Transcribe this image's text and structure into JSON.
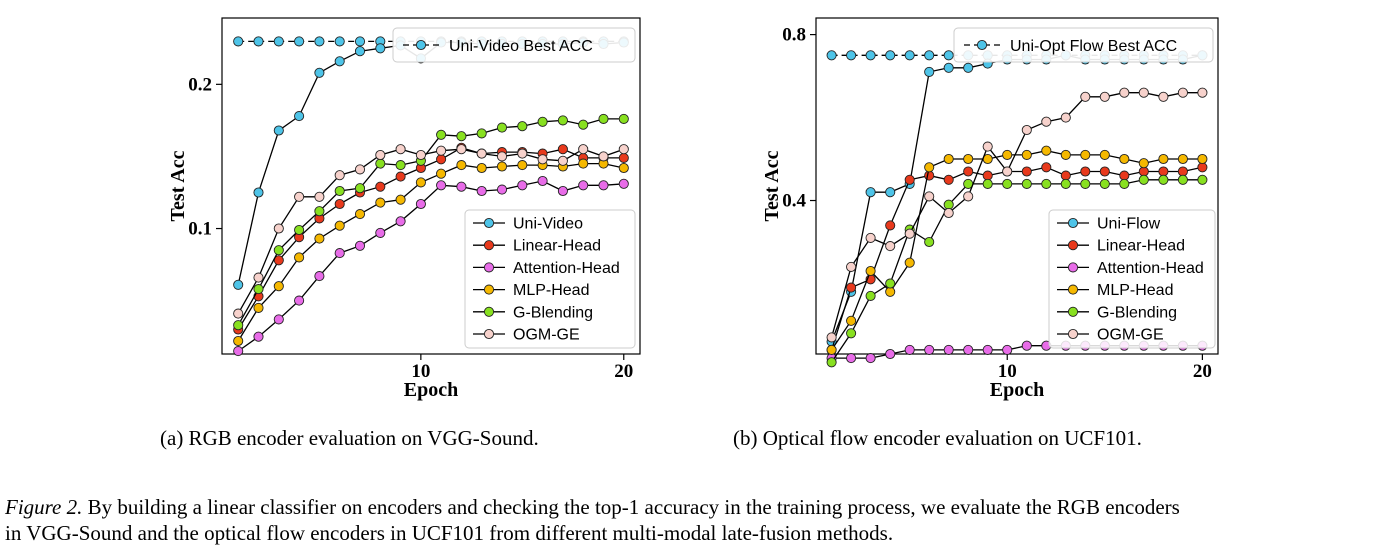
{
  "chart_data": [
    {
      "type": "line",
      "caption": "(a) RGB encoder evaluation on VGG-Sound.",
      "xlabel": "Epoch",
      "ylabel": "Test Acc",
      "xlim": [
        0.2,
        20.8
      ],
      "ylim": [
        0.013,
        0.246
      ],
      "xticks": [
        10,
        20
      ],
      "yticks": [
        0.1,
        0.2
      ],
      "ytick_labels": [
        "0.1",
        "0.2"
      ],
      "grid": false,
      "legend_top": "top-right",
      "legend_bottom": "bottom-right",
      "baseline": {
        "name": "Uni-Video Best ACC",
        "color": "#4ec4e8",
        "x": [
          1,
          2,
          3,
          4,
          5,
          6,
          7,
          8,
          9,
          10,
          11,
          12,
          13,
          14,
          15,
          16,
          17,
          18,
          19,
          20
        ],
        "y": [
          0.2298,
          0.2298,
          0.2298,
          0.2298,
          0.2298,
          0.2298,
          0.2298,
          0.2298,
          0.2298,
          0.2298,
          0.2298,
          0.2298,
          0.2298,
          0.2298,
          0.2298,
          0.2298,
          0.2298,
          0.2298,
          0.2298,
          0.2298
        ]
      },
      "series": [
        {
          "name": "Uni-Video",
          "color": "#4ec4e8",
          "x": [
            1,
            2,
            3,
            4,
            5,
            6,
            7,
            8,
            9,
            10,
            11,
            12,
            13,
            14,
            15,
            16,
            17,
            18,
            19,
            20
          ],
          "y": [
            0.061,
            0.125,
            0.168,
            0.178,
            0.208,
            0.216,
            0.223,
            0.225,
            0.227,
            0.218,
            0.229,
            0.229,
            0.228,
            0.228,
            0.228,
            0.228,
            0.228,
            0.229,
            0.228,
            0.229
          ]
        },
        {
          "name": "Linear-Head",
          "color": "#e8391c",
          "x": [
            1,
            2,
            3,
            4,
            5,
            6,
            7,
            8,
            9,
            10,
            11,
            12,
            13,
            14,
            15,
            16,
            17,
            18,
            19,
            20
          ],
          "y": [
            0.03,
            0.053,
            0.078,
            0.094,
            0.107,
            0.117,
            0.125,
            0.129,
            0.136,
            0.142,
            0.148,
            0.156,
            0.152,
            0.153,
            0.153,
            0.152,
            0.155,
            0.149,
            0.149,
            0.149
          ]
        },
        {
          "name": "Attention-Head",
          "color": "#e86ce8",
          "x": [
            1,
            2,
            3,
            4,
            5,
            6,
            7,
            8,
            9,
            10,
            11,
            12,
            13,
            14,
            15,
            16,
            17,
            18,
            19,
            20
          ],
          "y": [
            0.015,
            0.025,
            0.037,
            0.05,
            0.067,
            0.083,
            0.088,
            0.097,
            0.105,
            0.117,
            0.13,
            0.129,
            0.126,
            0.127,
            0.13,
            0.133,
            0.126,
            0.13,
            0.13,
            0.131
          ]
        },
        {
          "name": "MLP-Head",
          "color": "#f5b800",
          "x": [
            1,
            2,
            3,
            4,
            5,
            6,
            7,
            8,
            9,
            10,
            11,
            12,
            13,
            14,
            15,
            16,
            17,
            18,
            19,
            20
          ],
          "y": [
            0.022,
            0.045,
            0.06,
            0.08,
            0.093,
            0.102,
            0.11,
            0.118,
            0.12,
            0.132,
            0.138,
            0.144,
            0.142,
            0.143,
            0.144,
            0.144,
            0.143,
            0.145,
            0.145,
            0.142
          ]
        },
        {
          "name": "G-Blending",
          "color": "#88e020",
          "x": [
            1,
            2,
            3,
            4,
            5,
            6,
            7,
            8,
            9,
            10,
            11,
            12,
            13,
            14,
            15,
            16,
            17,
            18,
            19,
            20
          ],
          "y": [
            0.033,
            0.058,
            0.085,
            0.099,
            0.112,
            0.126,
            0.128,
            0.145,
            0.144,
            0.147,
            0.165,
            0.164,
            0.166,
            0.17,
            0.171,
            0.174,
            0.175,
            0.172,
            0.176,
            0.176
          ]
        },
        {
          "name": "OGM-GE",
          "color": "#f7d2cc",
          "x": [
            1,
            2,
            3,
            4,
            5,
            6,
            7,
            8,
            9,
            10,
            11,
            12,
            13,
            14,
            15,
            16,
            17,
            18,
            19,
            20
          ],
          "y": [
            0.041,
            0.066,
            0.1,
            0.122,
            0.122,
            0.137,
            0.141,
            0.151,
            0.155,
            0.151,
            0.154,
            0.155,
            0.152,
            0.15,
            0.152,
            0.148,
            0.147,
            0.155,
            0.15,
            0.155
          ]
        }
      ]
    },
    {
      "type": "line",
      "caption": "(b) Optical flow encoder evaluation on UCF101.",
      "xlabel": "Epoch",
      "ylabel": "Test Acc",
      "xlim": [
        0.2,
        20.8
      ],
      "ylim": [
        0.03,
        0.84
      ],
      "xticks": [
        10,
        20
      ],
      "yticks": [
        0.4,
        0.8
      ],
      "ytick_labels": [
        "0.4",
        "0.8"
      ],
      "grid": false,
      "legend_top": "top-right",
      "legend_bottom": "bottom-right",
      "baseline": {
        "name": "Uni-Opt Flow Best ACC",
        "color": "#4ec4e8",
        "x": [
          1,
          2,
          3,
          4,
          5,
          6,
          7,
          8,
          9,
          10,
          11,
          12,
          13,
          14,
          15,
          16,
          17,
          18,
          19,
          20
        ],
        "y": [
          0.75,
          0.75,
          0.75,
          0.75,
          0.75,
          0.75,
          0.75,
          0.75,
          0.75,
          0.75,
          0.75,
          0.75,
          0.75,
          0.75,
          0.75,
          0.75,
          0.75,
          0.75,
          0.75,
          0.75
        ]
      },
      "series": [
        {
          "name": "Uni-Flow",
          "color": "#4ec4e8",
          "x": [
            1,
            2,
            3,
            4,
            5,
            6,
            7,
            8,
            9,
            10,
            11,
            12,
            13,
            14,
            15,
            16,
            17,
            18,
            19,
            20
          ],
          "y": [
            0.06,
            0.18,
            0.42,
            0.42,
            0.44,
            0.71,
            0.72,
            0.72,
            0.73,
            0.74,
            0.74,
            0.74,
            0.75,
            0.74,
            0.74,
            0.74,
            0.74,
            0.74,
            0.74,
            0.75
          ]
        },
        {
          "name": "Linear-Head",
          "color": "#e8391c",
          "x": [
            1,
            2,
            3,
            4,
            5,
            6,
            7,
            8,
            9,
            10,
            11,
            12,
            13,
            14,
            15,
            16,
            17,
            18,
            19,
            20
          ],
          "y": [
            0.04,
            0.19,
            0.21,
            0.34,
            0.45,
            0.46,
            0.45,
            0.47,
            0.46,
            0.47,
            0.47,
            0.48,
            0.46,
            0.47,
            0.47,
            0.46,
            0.47,
            0.47,
            0.47,
            0.48
          ]
        },
        {
          "name": "Attention-Head",
          "color": "#e86ce8",
          "x": [
            1,
            2,
            3,
            4,
            5,
            6,
            7,
            8,
            9,
            10,
            11,
            12,
            13,
            14,
            15,
            16,
            17,
            18,
            19,
            20
          ],
          "y": [
            0.02,
            0.02,
            0.02,
            0.03,
            0.04,
            0.04,
            0.04,
            0.04,
            0.04,
            0.04,
            0.05,
            0.05,
            0.05,
            0.05,
            0.05,
            0.05,
            0.05,
            0.05,
            0.05,
            0.05
          ]
        },
        {
          "name": "MLP-Head",
          "color": "#f5b800",
          "x": [
            1,
            2,
            3,
            4,
            5,
            6,
            7,
            8,
            9,
            10,
            11,
            12,
            13,
            14,
            15,
            16,
            17,
            18,
            19,
            20
          ],
          "y": [
            0.04,
            0.11,
            0.23,
            0.18,
            0.25,
            0.48,
            0.5,
            0.5,
            0.5,
            0.51,
            0.51,
            0.52,
            0.51,
            0.51,
            0.51,
            0.5,
            0.49,
            0.5,
            0.5,
            0.5
          ]
        },
        {
          "name": "G-Blending",
          "color": "#88e020",
          "x": [
            1,
            2,
            3,
            4,
            5,
            6,
            7,
            8,
            9,
            10,
            11,
            12,
            13,
            14,
            15,
            16,
            17,
            18,
            19,
            20
          ],
          "y": [
            0.01,
            0.08,
            0.17,
            0.2,
            0.33,
            0.3,
            0.39,
            0.44,
            0.44,
            0.44,
            0.44,
            0.44,
            0.44,
            0.44,
            0.44,
            0.44,
            0.45,
            0.45,
            0.45,
            0.45
          ]
        },
        {
          "name": "OGM-GE",
          "color": "#f7d2cc",
          "x": [
            1,
            2,
            3,
            4,
            5,
            6,
            7,
            8,
            9,
            10,
            11,
            12,
            13,
            14,
            15,
            16,
            17,
            18,
            19,
            20
          ],
          "y": [
            0.07,
            0.24,
            0.31,
            0.29,
            0.32,
            0.41,
            0.37,
            0.41,
            0.53,
            0.47,
            0.57,
            0.59,
            0.6,
            0.65,
            0.65,
            0.66,
            0.66,
            0.65,
            0.66,
            0.66
          ]
        }
      ]
    }
  ],
  "figure_caption": {
    "label": "Figure 2.",
    "line1": " By building a linear classifier on encoders and checking the top-1 accuracy in the training process, we evaluate the RGB encoders",
    "line2": "in VGG-Sound and the optical flow encoders in UCF101 from different multi-modal late-fusion methods."
  }
}
